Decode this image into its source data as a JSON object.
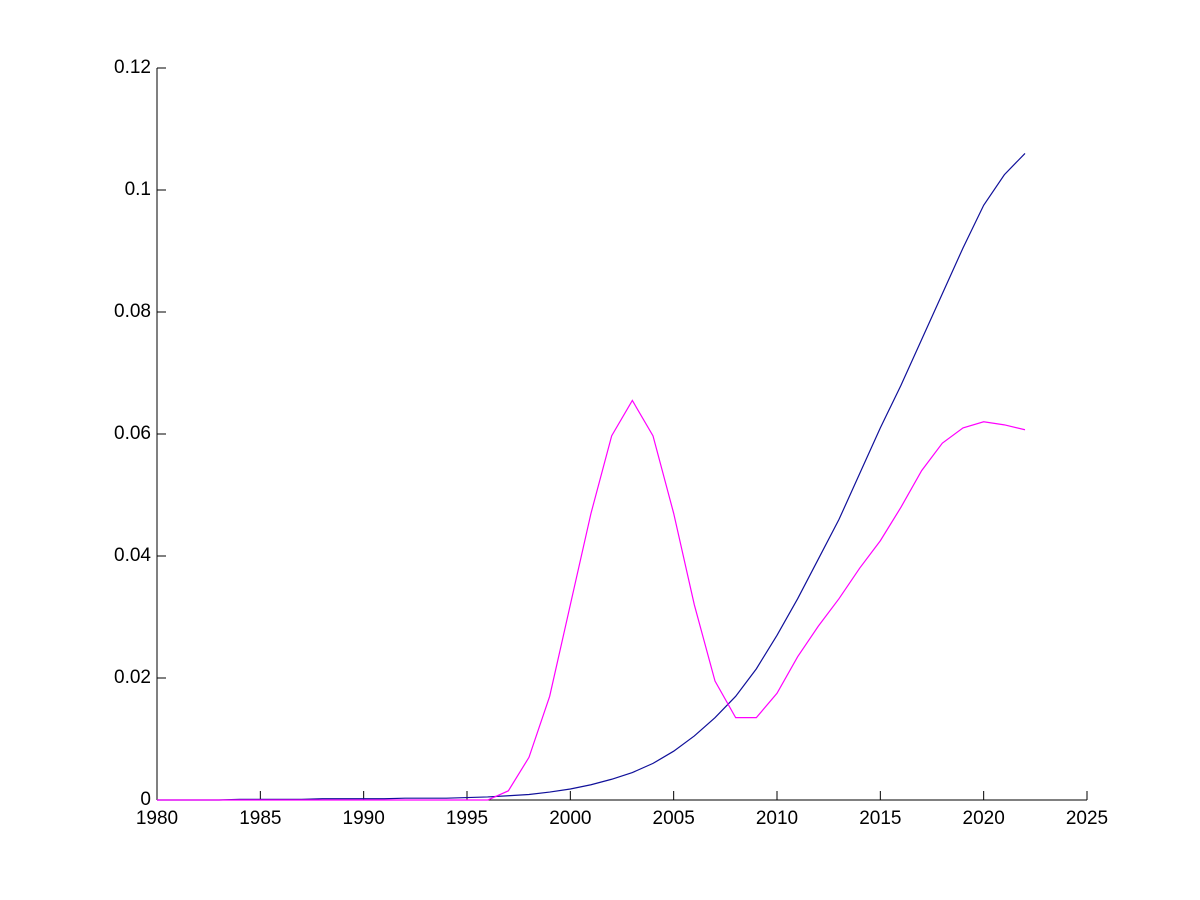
{
  "chart_data": {
    "type": "line",
    "x": [
      1980,
      1981,
      1982,
      1983,
      1984,
      1985,
      1986,
      1987,
      1988,
      1989,
      1990,
      1991,
      1992,
      1993,
      1994,
      1995,
      1996,
      1997,
      1998,
      1999,
      2000,
      2001,
      2002,
      2003,
      2004,
      2005,
      2006,
      2007,
      2008,
      2009,
      2010,
      2011,
      2012,
      2013,
      2014,
      2015,
      2016,
      2017,
      2018,
      2019,
      2020,
      2021,
      2022
    ],
    "series": [
      {
        "color": "#10109a",
        "values": [
          0,
          0,
          0,
          0,
          0.0001,
          0.0001,
          0.0001,
          0.0001,
          0.0002,
          0.0002,
          0.0002,
          0.0002,
          0.0003,
          0.0003,
          0.0003,
          0.0004,
          0.0005,
          0.0007,
          0.0009,
          0.0013,
          0.0018,
          0.0025,
          0.0034,
          0.0045,
          0.006,
          0.008,
          0.0105,
          0.0135,
          0.017,
          0.0215,
          0.027,
          0.033,
          0.0395,
          0.046,
          0.0535,
          0.061,
          0.068,
          0.0755,
          0.083,
          0.0905,
          0.0975,
          0.1025,
          0.106
        ]
      },
      {
        "color": "#ff00ff",
        "values": [
          0,
          0,
          0,
          0,
          0,
          0,
          0,
          0,
          0,
          0,
          0,
          0,
          0,
          0,
          0,
          0,
          0,
          0.0015,
          0.007,
          0.017,
          0.032,
          0.047,
          0.0597,
          0.0655,
          0.0597,
          0.047,
          0.032,
          0.0195,
          0.0135,
          0.0135,
          0.0175,
          0.0235,
          0.0285,
          0.033,
          0.038,
          0.0425,
          0.048,
          0.054,
          0.0585,
          0.061,
          0.062,
          0.0615,
          0.0607
        ]
      }
    ],
    "xlim": [
      1980,
      2025
    ],
    "xticks": [
      1980,
      1985,
      1990,
      1995,
      2000,
      2005,
      2010,
      2015,
      2020,
      2025
    ],
    "ylim": [
      0,
      0.12
    ],
    "yticks": [
      0,
      0.02,
      0.04,
      0.06,
      0.08,
      0.1,
      0.12
    ],
    "grid": false
  }
}
